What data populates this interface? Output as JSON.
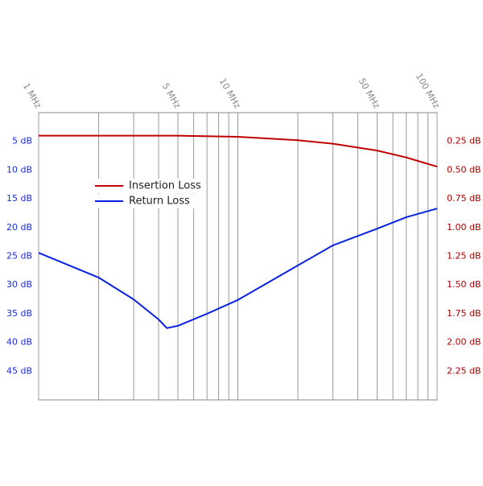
{
  "chart_data": {
    "type": "line",
    "x_scale": "log",
    "xlim": [
      1,
      100
    ],
    "xticks": [
      {
        "value": 1,
        "label": "1 MHz"
      },
      {
        "value": 5,
        "label": "5 MHz"
      },
      {
        "value": 10,
        "label": "10 MHz"
      },
      {
        "value": 50,
        "label": "50 MHz"
      },
      {
        "value": 100,
        "label": "100 MHz"
      }
    ],
    "xminor": [
      2,
      3,
      4,
      6,
      7,
      8,
      9,
      20,
      30,
      40,
      60,
      70,
      80,
      90
    ],
    "ylim": [
      50,
      0
    ],
    "yticks": [
      {
        "value": 5,
        "label": "5 dB"
      },
      {
        "value": 10,
        "label": "10 dB"
      },
      {
        "value": 15,
        "label": "15 dB"
      },
      {
        "value": 20,
        "label": "20 dB"
      },
      {
        "value": 25,
        "label": "25 dB"
      },
      {
        "value": 30,
        "label": "30 dB"
      },
      {
        "value": 35,
        "label": "35 dB"
      },
      {
        "value": 40,
        "label": "40 dB"
      },
      {
        "value": 45,
        "label": "45 dB"
      }
    ],
    "y2lim": [
      2.5,
      0
    ],
    "y2ticks": [
      {
        "value": 0.25,
        "label": "0.25 dB"
      },
      {
        "value": 0.5,
        "label": "0.50 dB"
      },
      {
        "value": 0.75,
        "label": "0.75 dB"
      },
      {
        "value": 1,
        "label": "1.00 dB"
      },
      {
        "value": 1.25,
        "label": "1.25 dB"
      },
      {
        "value": 1.5,
        "label": "1.50 dB"
      },
      {
        "value": 1.75,
        "label": "1.75 dB"
      },
      {
        "value": 2,
        "label": "2.00 dB"
      },
      {
        "value": 2.25,
        "label": "2.25 dB"
      }
    ],
    "grid": true,
    "legend": "upper left",
    "series": [
      {
        "name": "Insertion Loss",
        "color": "#c00000",
        "axis": "y2",
        "x": [
          1,
          2,
          5,
          10,
          20,
          30,
          50,
          70,
          100
        ],
        "values": [
          0.2,
          0.2,
          0.2,
          0.21,
          0.24,
          0.27,
          0.33,
          0.39,
          0.47
        ]
      },
      {
        "name": "Return Loss",
        "color": "#0a22e0",
        "x": [
          1,
          2,
          3,
          4,
          4.4,
          5,
          7,
          10,
          20,
          30,
          50,
          70,
          100
        ],
        "values": [
          24.4,
          28.7,
          32.5,
          36,
          37.5,
          37.1,
          35,
          32.6,
          26.6,
          23.1,
          20.2,
          18.2,
          16.7
        ]
      }
    ]
  }
}
